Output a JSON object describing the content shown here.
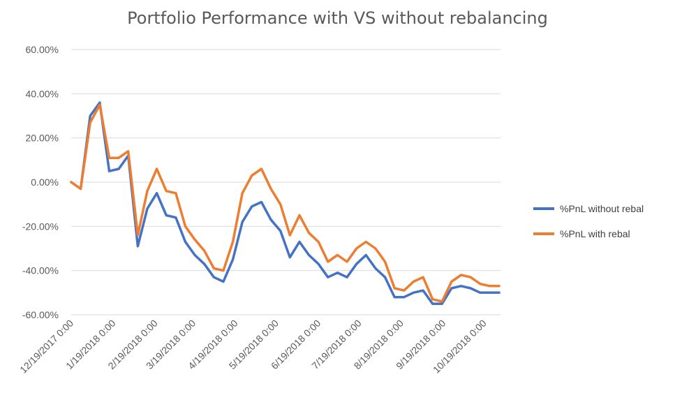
{
  "chart_data": {
    "type": "line",
    "title": "Portfolio Performance with VS without rebalancing",
    "xlabel": "",
    "ylabel": "",
    "ylim": [
      -0.6,
      0.6
    ],
    "yticks": [
      {
        "value": 0.6,
        "label": "60.00%"
      },
      {
        "value": 0.4,
        "label": "40.00%"
      },
      {
        "value": 0.2,
        "label": "20.00%"
      },
      {
        "value": 0.0,
        "label": "0.00%"
      },
      {
        "value": -0.2,
        "label": "-20.00%"
      },
      {
        "value": -0.4,
        "label": "-40.00%"
      },
      {
        "value": -0.6,
        "label": "-60.00%"
      }
    ],
    "xlim": [
      "2017-12-19",
      "2018-10-31"
    ],
    "xticks": [
      {
        "date": "2017-12-19",
        "label": "12/19/2017 0:00"
      },
      {
        "date": "2018-01-19",
        "label": "1/19/2018 0:00"
      },
      {
        "date": "2018-02-19",
        "label": "2/19/2018 0:00"
      },
      {
        "date": "2018-03-19",
        "label": "3/19/2018 0:00"
      },
      {
        "date": "2018-04-19",
        "label": "4/19/2018 0:00"
      },
      {
        "date": "2018-05-19",
        "label": "5/19/2018 0:00"
      },
      {
        "date": "2018-06-19",
        "label": "6/19/2018 0:00"
      },
      {
        "date": "2018-07-19",
        "label": "7/19/2018 0:00"
      },
      {
        "date": "2018-08-19",
        "label": "8/19/2018 0:00"
      },
      {
        "date": "2018-09-19",
        "label": "9/19/2018 0:00"
      },
      {
        "date": "2018-10-19",
        "label": "10/19/2018 0:00"
      }
    ],
    "x": [
      "2017-12-19",
      "2017-12-26",
      "2018-01-02",
      "2018-01-09",
      "2018-01-16",
      "2018-01-23",
      "2018-01-30",
      "2018-02-06",
      "2018-02-13",
      "2018-02-20",
      "2018-02-27",
      "2018-03-06",
      "2018-03-13",
      "2018-03-20",
      "2018-03-27",
      "2018-04-03",
      "2018-04-10",
      "2018-04-17",
      "2018-04-24",
      "2018-05-01",
      "2018-05-08",
      "2018-05-15",
      "2018-05-22",
      "2018-05-29",
      "2018-06-05",
      "2018-06-12",
      "2018-06-19",
      "2018-06-26",
      "2018-07-03",
      "2018-07-10",
      "2018-07-17",
      "2018-07-24",
      "2018-07-31",
      "2018-08-07",
      "2018-08-14",
      "2018-08-21",
      "2018-08-28",
      "2018-09-04",
      "2018-09-11",
      "2018-09-18",
      "2018-09-25",
      "2018-10-02",
      "2018-10-09",
      "2018-10-16",
      "2018-10-23",
      "2018-10-30"
    ],
    "series": [
      {
        "name": "%PnL without rebal",
        "color": "#4472c4",
        "values": [
          0.0,
          -0.03,
          0.3,
          0.36,
          0.05,
          0.06,
          0.12,
          -0.29,
          -0.12,
          -0.05,
          -0.15,
          -0.16,
          -0.27,
          -0.33,
          -0.37,
          -0.43,
          -0.45,
          -0.35,
          -0.18,
          -0.11,
          -0.09,
          -0.17,
          -0.22,
          -0.34,
          -0.27,
          -0.33,
          -0.37,
          -0.43,
          -0.41,
          -0.43,
          -0.37,
          -0.33,
          -0.39,
          -0.43,
          -0.52,
          -0.52,
          -0.5,
          -0.49,
          -0.55,
          -0.55,
          -0.48,
          -0.47,
          -0.48,
          -0.5,
          -0.5,
          -0.5
        ]
      },
      {
        "name": "%PnL with rebal",
        "color": "#ed7d31",
        "values": [
          0.0,
          -0.03,
          0.27,
          0.35,
          0.11,
          0.11,
          0.14,
          -0.24,
          -0.04,
          0.06,
          -0.04,
          -0.05,
          -0.2,
          -0.26,
          -0.31,
          -0.39,
          -0.4,
          -0.27,
          -0.05,
          0.03,
          0.06,
          -0.03,
          -0.1,
          -0.24,
          -0.15,
          -0.23,
          -0.27,
          -0.36,
          -0.33,
          -0.36,
          -0.3,
          -0.27,
          -0.3,
          -0.36,
          -0.48,
          -0.49,
          -0.45,
          -0.43,
          -0.53,
          -0.54,
          -0.45,
          -0.42,
          -0.43,
          -0.46,
          -0.47,
          -0.47
        ]
      }
    ],
    "grid": true,
    "legend_position": "right"
  }
}
